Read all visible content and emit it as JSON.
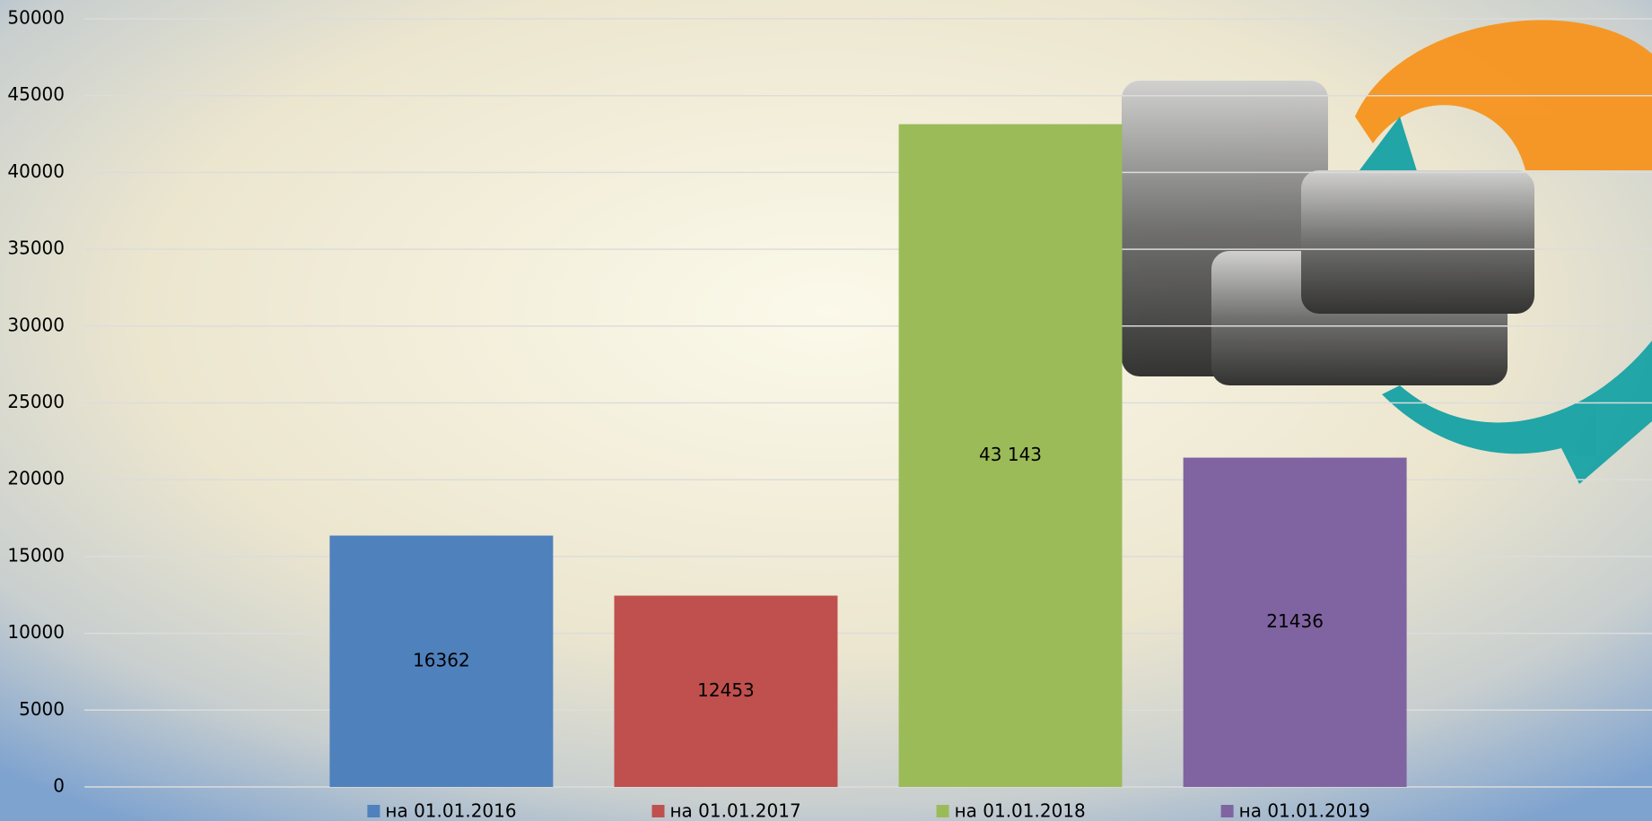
{
  "chart_data": {
    "type": "bar",
    "categories": [
      null
    ],
    "series": [
      {
        "name": "на 01.01.2016",
        "color": "#4f81bd",
        "values": [
          16362
        ]
      },
      {
        "name": "на 01.01.2017",
        "color": "#c0504d",
        "values": [
          12453
        ]
      },
      {
        "name": "на 01.01.2018",
        "color": "#9bbb59",
        "values": [
          43143
        ],
        "value_labels": [
          "43 143"
        ]
      },
      {
        "name": "на 01.01.2019",
        "color": "#8064a2",
        "values": [
          21436
        ]
      }
    ],
    "ylim": [
      0,
      50000
    ],
    "yticks": [
      0,
      5000,
      10000,
      15000,
      20000,
      25000,
      30000,
      35000,
      40000,
      45000,
      50000
    ],
    "grid": true,
    "legend": "bottom"
  }
}
